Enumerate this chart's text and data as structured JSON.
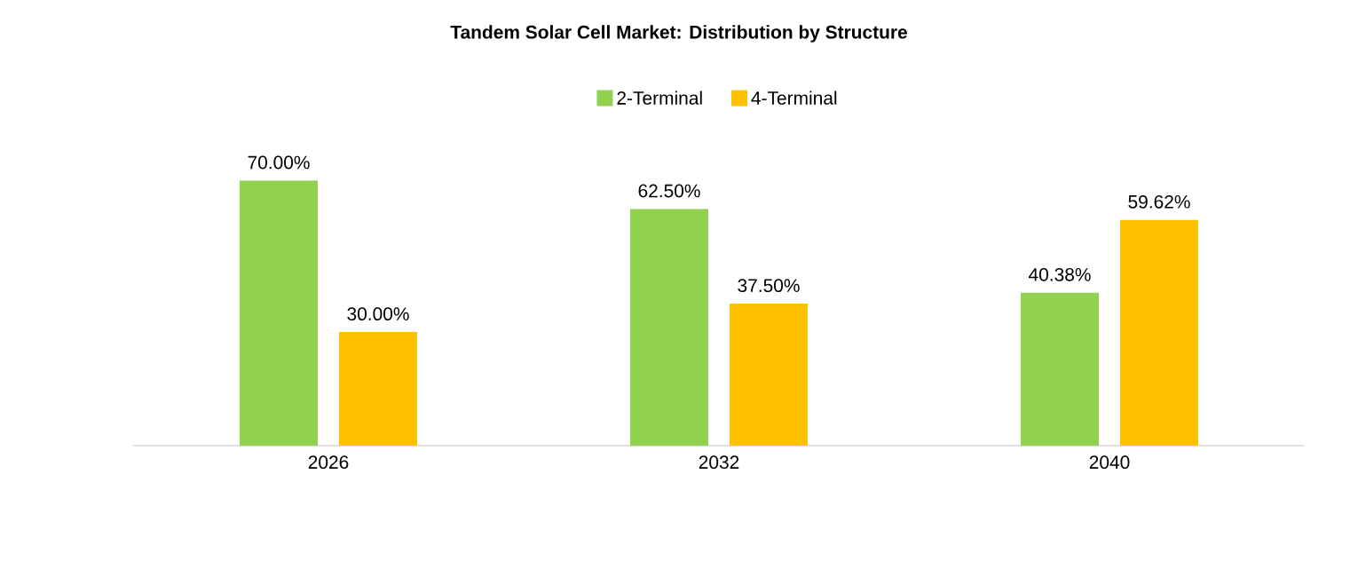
{
  "chart_data": {
    "type": "bar",
    "title": "Tandem Solar Cell Market: Distribution by Structure",
    "categories": [
      "2026",
      "2032",
      "2040"
    ],
    "series": [
      {
        "name": "2-Terminal",
        "color": "#92d050",
        "values": [
          70.0,
          62.5,
          40.38
        ],
        "value_labels": [
          "70.00%",
          "62.50%",
          "40.38%"
        ]
      },
      {
        "name": "4-Terminal",
        "color": "#ffc000",
        "values": [
          30.0,
          37.5,
          59.62
        ],
        "value_labels": [
          "30.00%",
          "37.50%",
          "59.62%"
        ]
      }
    ],
    "legend": "top"
  }
}
